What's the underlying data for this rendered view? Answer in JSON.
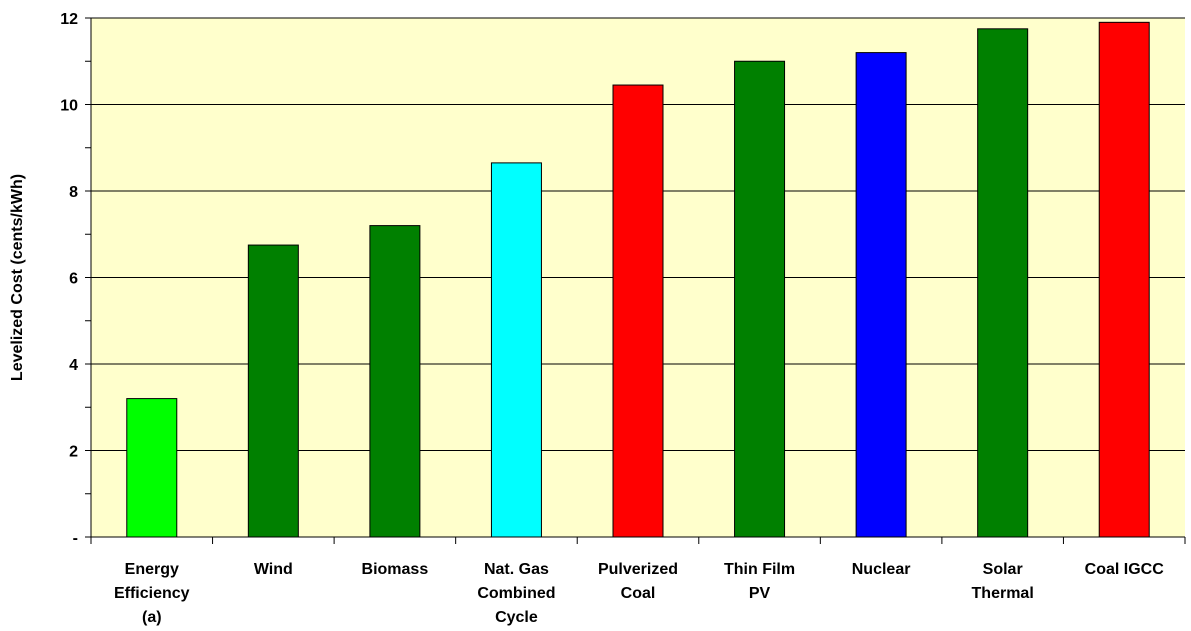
{
  "chart_data": {
    "type": "bar",
    "title": "",
    "xlabel": "",
    "ylabel": "Levelized Cost (cents/kWh)",
    "ylim": [
      0,
      12
    ],
    "major_ticks": [
      0,
      2,
      4,
      6,
      8,
      10,
      12
    ],
    "tick_labels": [
      "-",
      "2",
      "4",
      "6",
      "8",
      "10",
      "12"
    ],
    "grid": true,
    "background_color": "#FFFFCC",
    "categories": [
      [
        "Energy",
        "Efficiency",
        "(a)"
      ],
      [
        "Wind"
      ],
      [
        "Biomass"
      ],
      [
        "Nat. Gas",
        "Combined",
        "Cycle"
      ],
      [
        "Pulverized",
        "Coal"
      ],
      [
        "Thin Film",
        "PV"
      ],
      [
        "Nuclear"
      ],
      [
        "Solar",
        "Thermal"
      ],
      [
        "Coal IGCC"
      ]
    ],
    "values": [
      3.2,
      6.75,
      7.2,
      8.65,
      10.45,
      11.0,
      11.2,
      11.75,
      11.9
    ],
    "colors": [
      "#00FF00",
      "#008000",
      "#008000",
      "#00FFFF",
      "#FF0000",
      "#008000",
      "#0000FF",
      "#008000",
      "#FF0000"
    ]
  }
}
